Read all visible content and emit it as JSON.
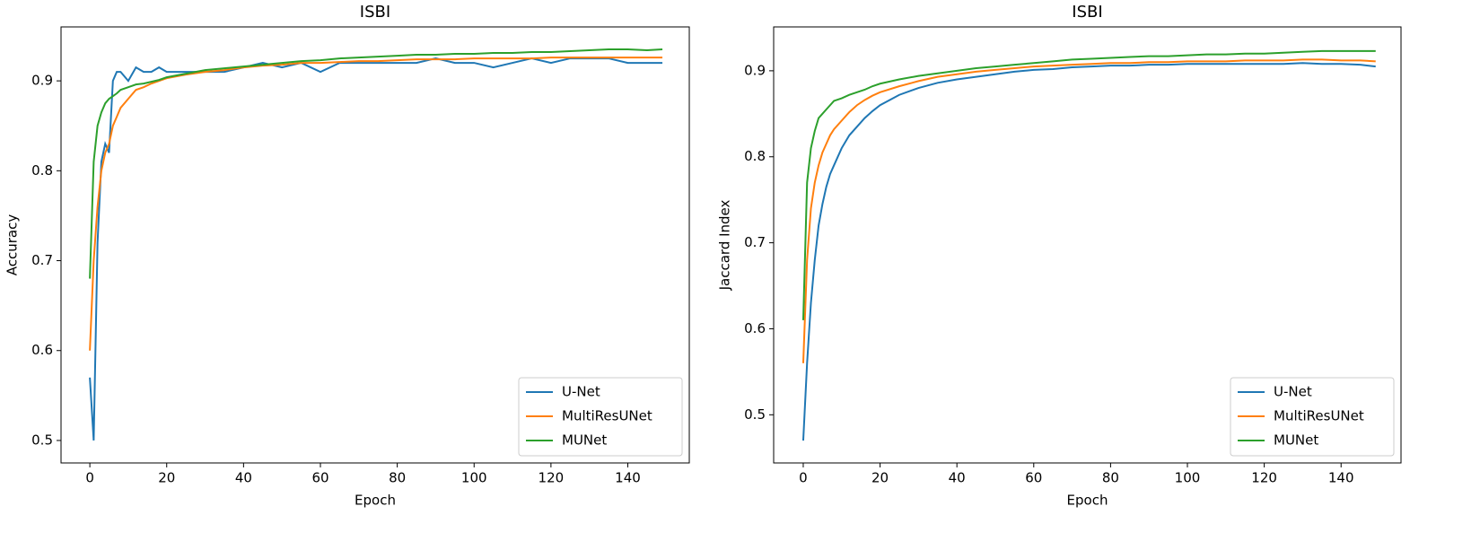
{
  "chart_data": [
    {
      "type": "line",
      "title": "ISBI",
      "x_label": "Epoch",
      "y_label": "Accuracy",
      "x": [
        0,
        1,
        2,
        3,
        4,
        5,
        6,
        7,
        8,
        10,
        12,
        14,
        16,
        18,
        20,
        25,
        30,
        35,
        40,
        45,
        50,
        55,
        60,
        65,
        70,
        75,
        80,
        85,
        90,
        95,
        100,
        105,
        110,
        115,
        120,
        125,
        130,
        135,
        140,
        145,
        149
      ],
      "series": [
        {
          "name": "U-Net",
          "color": "#1f77b4",
          "values": [
            0.57,
            0.5,
            0.72,
            0.81,
            0.83,
            0.82,
            0.9,
            0.91,
            0.91,
            0.9,
            0.915,
            0.91,
            0.91,
            0.915,
            0.91,
            0.91,
            0.91,
            0.91,
            0.915,
            0.92,
            0.915,
            0.92,
            0.91,
            0.92,
            0.92,
            0.92,
            0.92,
            0.92,
            0.925,
            0.92,
            0.92,
            0.915,
            0.92,
            0.925,
            0.92,
            0.925,
            0.925,
            0.925,
            0.92,
            0.92,
            0.92
          ]
        },
        {
          "name": "MultiResUNet",
          "color": "#ff7f0e",
          "values": [
            0.6,
            0.7,
            0.76,
            0.8,
            0.82,
            0.83,
            0.85,
            0.86,
            0.87,
            0.88,
            0.89,
            0.893,
            0.897,
            0.9,
            0.903,
            0.907,
            0.91,
            0.912,
            0.915,
            0.917,
            0.918,
            0.92,
            0.92,
            0.921,
            0.922,
            0.922,
            0.923,
            0.924,
            0.924,
            0.924,
            0.925,
            0.925,
            0.925,
            0.925,
            0.926,
            0.926,
            0.926,
            0.926,
            0.926,
            0.926,
            0.926
          ]
        },
        {
          "name": "MUNet",
          "color": "#2ca02c",
          "values": [
            0.68,
            0.81,
            0.85,
            0.865,
            0.875,
            0.88,
            0.883,
            0.886,
            0.89,
            0.893,
            0.896,
            0.897,
            0.899,
            0.901,
            0.904,
            0.908,
            0.912,
            0.914,
            0.916,
            0.918,
            0.92,
            0.922,
            0.923,
            0.925,
            0.926,
            0.927,
            0.928,
            0.929,
            0.929,
            0.93,
            0.93,
            0.931,
            0.931,
            0.932,
            0.932,
            0.933,
            0.934,
            0.935,
            0.935,
            0.934,
            0.935
          ]
        }
      ],
      "xlim": [
        -7.5,
        156
      ],
      "xticks": [
        0,
        20,
        40,
        60,
        80,
        100,
        120,
        140
      ],
      "ylim": [
        0.475,
        0.96
      ],
      "yticks": [
        0.5,
        0.6,
        0.7,
        0.8,
        0.9
      ],
      "legend": "lower right"
    },
    {
      "type": "line",
      "title": "ISBI",
      "x_label": "Epoch",
      "y_label": "Jaccard Index",
      "x": [
        0,
        1,
        2,
        3,
        4,
        5,
        6,
        7,
        8,
        10,
        12,
        14,
        16,
        18,
        20,
        25,
        30,
        35,
        40,
        45,
        50,
        55,
        60,
        65,
        70,
        75,
        80,
        85,
        90,
        95,
        100,
        105,
        110,
        115,
        120,
        125,
        130,
        135,
        140,
        145,
        149
      ],
      "series": [
        {
          "name": "U-Net",
          "color": "#1f77b4",
          "values": [
            0.47,
            0.56,
            0.63,
            0.68,
            0.72,
            0.745,
            0.765,
            0.78,
            0.79,
            0.81,
            0.825,
            0.835,
            0.845,
            0.853,
            0.86,
            0.872,
            0.88,
            0.886,
            0.89,
            0.893,
            0.896,
            0.899,
            0.901,
            0.902,
            0.904,
            0.905,
            0.906,
            0.906,
            0.907,
            0.907,
            0.908,
            0.908,
            0.908,
            0.908,
            0.908,
            0.908,
            0.909,
            0.908,
            0.908,
            0.907,
            0.905
          ]
        },
        {
          "name": "MultiResUNet",
          "color": "#ff7f0e",
          "values": [
            0.56,
            0.68,
            0.74,
            0.77,
            0.79,
            0.805,
            0.815,
            0.825,
            0.832,
            0.842,
            0.852,
            0.86,
            0.866,
            0.871,
            0.875,
            0.882,
            0.888,
            0.893,
            0.896,
            0.899,
            0.901,
            0.903,
            0.905,
            0.906,
            0.907,
            0.908,
            0.909,
            0.909,
            0.91,
            0.91,
            0.911,
            0.911,
            0.911,
            0.912,
            0.912,
            0.912,
            0.913,
            0.913,
            0.912,
            0.912,
            0.911
          ]
        },
        {
          "name": "MUNet",
          "color": "#2ca02c",
          "values": [
            0.61,
            0.77,
            0.81,
            0.83,
            0.845,
            0.85,
            0.855,
            0.86,
            0.865,
            0.868,
            0.872,
            0.875,
            0.878,
            0.882,
            0.885,
            0.89,
            0.894,
            0.897,
            0.9,
            0.903,
            0.905,
            0.907,
            0.909,
            0.911,
            0.913,
            0.914,
            0.915,
            0.916,
            0.917,
            0.917,
            0.918,
            0.919,
            0.919,
            0.92,
            0.92,
            0.921,
            0.922,
            0.923,
            0.923,
            0.923,
            0.923
          ]
        }
      ],
      "xlim": [
        -7.7,
        155.6
      ],
      "xticks": [
        0,
        20,
        40,
        60,
        80,
        100,
        120,
        140
      ],
      "ylim": [
        0.444,
        0.951
      ],
      "yticks": [
        0.5,
        0.6,
        0.7,
        0.8,
        0.9
      ],
      "legend": "lower right"
    }
  ]
}
